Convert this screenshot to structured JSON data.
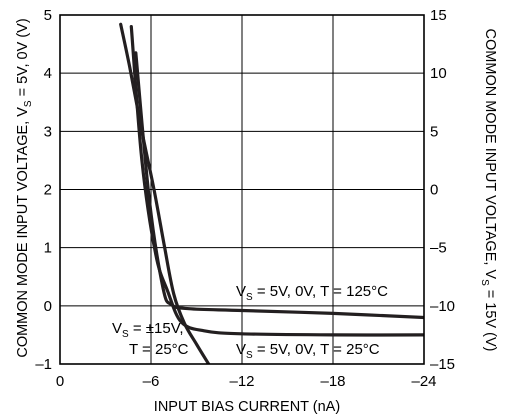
{
  "chart_data": {
    "type": "line",
    "xlabel": "INPUT BIAS CURRENT (nA)",
    "ylabel_left": {
      "pre": "COMMON MODE INPUT VOLTAGE, V",
      "sub": "S",
      "post": " = 5V, 0V (V)"
    },
    "ylabel_right": {
      "pre": "COMMON MODE INPUT VOLTAGE, V",
      "sub": "S",
      "post": " = 15V (V)"
    },
    "xlim": [
      0,
      -24
    ],
    "ylim_left": [
      -1,
      5
    ],
    "ylim_right": [
      -15,
      15
    ],
    "x_ticks": [
      {
        "value": 0,
        "label": "0"
      },
      {
        "value": -6,
        "label": "–6"
      },
      {
        "value": -12,
        "label": "–12"
      },
      {
        "value": -18,
        "label": "–18"
      },
      {
        "value": -24,
        "label": "–24"
      }
    ],
    "y_ticks_left": [
      {
        "value": 5,
        "label": "5"
      },
      {
        "value": 4,
        "label": "4"
      },
      {
        "value": 3,
        "label": "3"
      },
      {
        "value": 2,
        "label": "2"
      },
      {
        "value": 1,
        "label": "1"
      },
      {
        "value": 0,
        "label": "0"
      },
      {
        "value": -1,
        "label": "–1"
      }
    ],
    "y_ticks_right": [
      {
        "value": 15,
        "label": "15"
      },
      {
        "value": 10,
        "label": "10"
      },
      {
        "value": 5,
        "label": "5"
      },
      {
        "value": 0,
        "label": "0"
      },
      {
        "value": -5,
        "label": "–5"
      },
      {
        "value": -10,
        "label": "–10"
      },
      {
        "value": -15,
        "label": "–15"
      }
    ],
    "grid": true,
    "series": [
      {
        "label": {
          "pre": "V",
          "sub": "S",
          "post": " = 5V, 0V, T = 125°C"
        },
        "axis": "left",
        "points": [
          [
            -5.0,
            4.35
          ],
          [
            -5.9,
            1.8
          ],
          [
            -6.8,
            0.3
          ],
          [
            -7.35,
            0.02
          ],
          [
            -8.5,
            -0.05
          ],
          [
            -12,
            -0.08
          ],
          [
            -18,
            -0.13
          ],
          [
            -24,
            -0.2
          ]
        ]
      },
      {
        "label": {
          "pre": "V",
          "sub": "S",
          "post": " = 5V, 0V, T = 25°C"
        },
        "axis": "left",
        "points": [
          [
            -4.7,
            4.8
          ],
          [
            -5.4,
            2.5
          ],
          [
            -6.3,
            0.9
          ],
          [
            -7.1,
            0.25
          ],
          [
            -8.0,
            -0.28
          ],
          [
            -9.5,
            -0.43
          ],
          [
            -12,
            -0.48
          ],
          [
            -18,
            -0.5
          ],
          [
            -24,
            -0.5
          ]
        ]
      }
    ],
    "series_15v": {
      "label": {
        "line1_pre": "V",
        "line1_sub": "S",
        "line1_post": " = ±15V,",
        "line2": "T = 25°C"
      },
      "axis": "right",
      "points": [
        [
          -4.0,
          14.2
        ],
        [
          -4.6,
          10.5
        ],
        [
          -5.4,
          5.0
        ],
        [
          -6.2,
          0.0
        ],
        [
          -6.9,
          -5.0
        ],
        [
          -7.5,
          -9.0
        ],
        [
          -8.2,
          -11.5
        ],
        [
          -9.0,
          -13.3
        ],
        [
          -9.8,
          -15.0
        ]
      ]
    }
  }
}
